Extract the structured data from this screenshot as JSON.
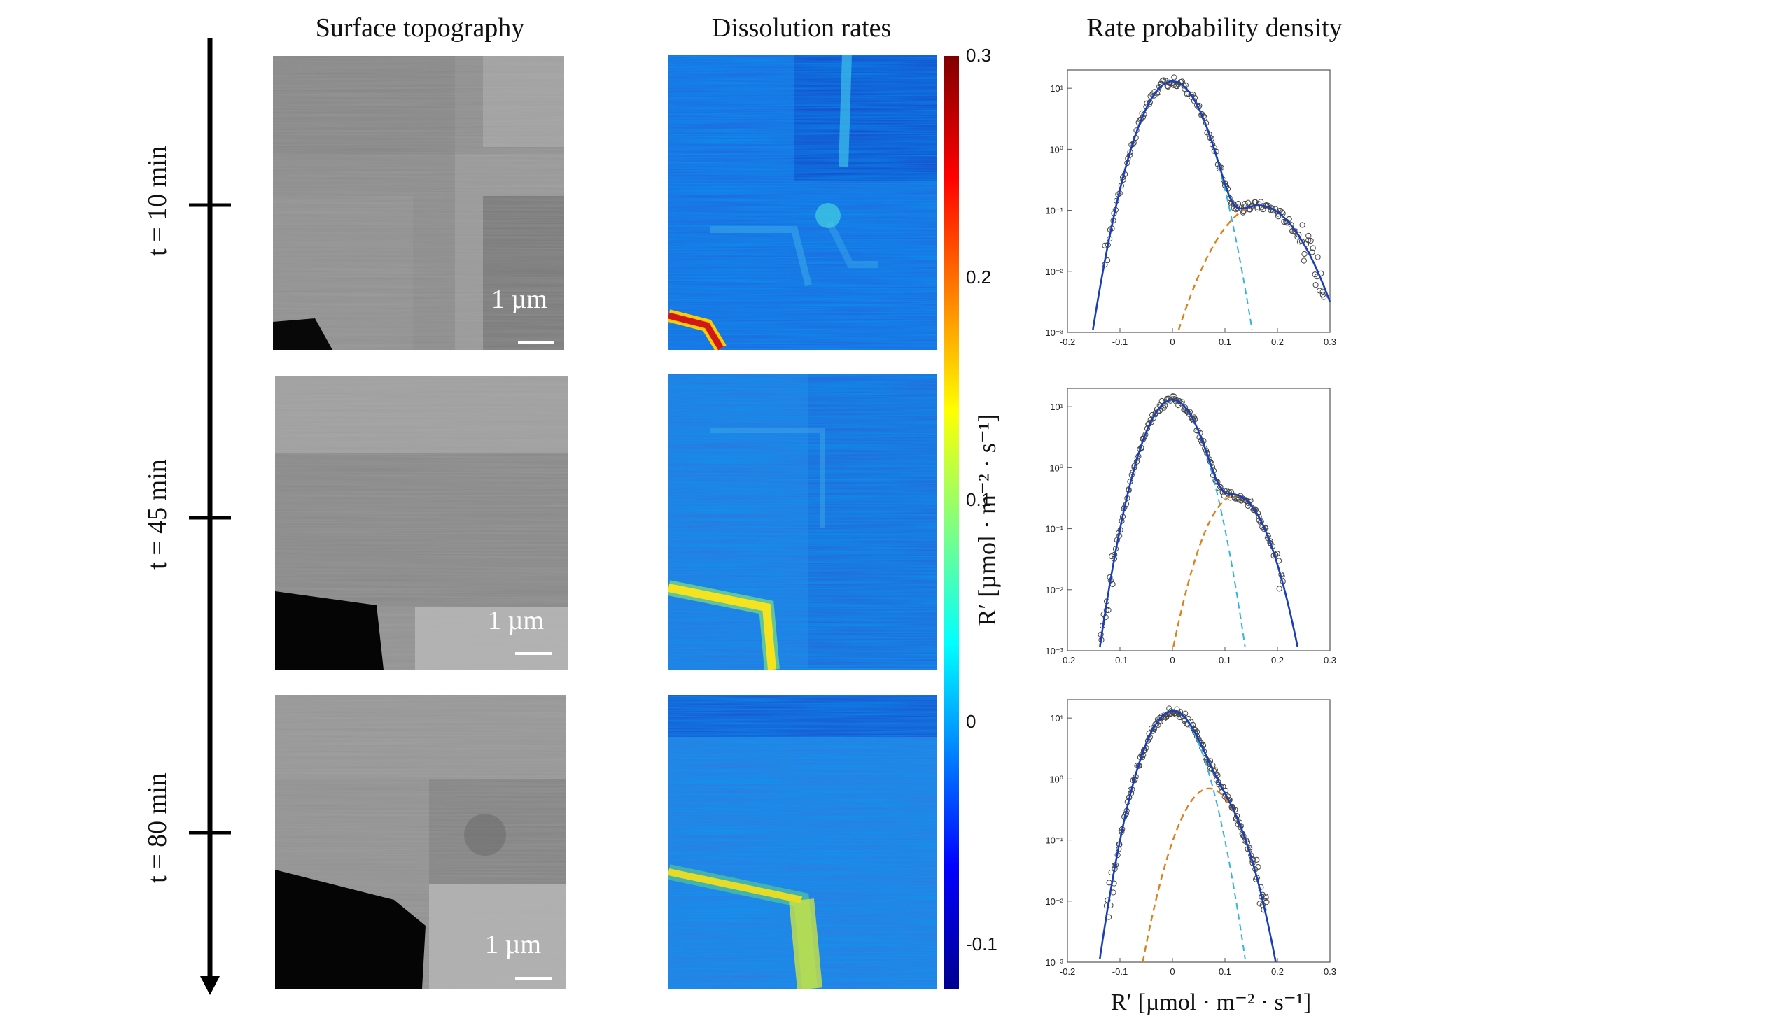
{
  "titles": {
    "topography": "Surface topography",
    "rates": "Dissolution rates",
    "density": "Rate probability density"
  },
  "timeline": [
    "t = 10 min",
    "t = 45 min",
    "t = 80 min"
  ],
  "scale_bar_label": "1 µm",
  "colorbar": {
    "ticks": [
      "0.3",
      "0.2",
      "0.1",
      "0",
      "-0.1"
    ],
    "tick_values": [
      0.3,
      0.2,
      0.1,
      0,
      -0.1
    ],
    "range": [
      -0.12,
      0.3
    ],
    "label": "R′ [µmol · m⁻² · s⁻¹]",
    "colors": [
      "#00008f",
      "#0000ff",
      "#00ffff",
      "#ffff00",
      "#ff0000",
      "#800000"
    ]
  },
  "density_xlabel": "R′ [µmol · m⁻² · s⁻¹]",
  "chart_data": [
    {
      "type": "scatter",
      "title": "t = 10 min",
      "xlabel": "",
      "ylabel": "",
      "xlim": [
        -0.2,
        0.3
      ],
      "ylim_log10": [
        -3,
        1.3
      ],
      "xticks": [
        "-0.2",
        "-0.1",
        "0",
        "0.1",
        "0.2",
        "0.3"
      ],
      "yticks": [
        "10⁻³",
        "10⁻²",
        "10⁻¹",
        "10⁰",
        "10¹"
      ],
      "components": [
        {
          "name": "fit",
          "color": "#1a3fb5",
          "style": "solid",
          "amp": 13,
          "mu": 0,
          "sigma": 0.035
        },
        {
          "name": "gaussian-1",
          "color": "#38b3d9",
          "style": "dashed",
          "amp": 13,
          "mu": 0,
          "sigma": 0.035
        },
        {
          "name": "gaussian-2",
          "color": "#d9821e",
          "style": "dashed",
          "amp": 0.12,
          "mu": 0.165,
          "sigma": 0.05
        }
      ],
      "points_range": [
        -0.13,
        0.29
      ]
    },
    {
      "type": "scatter",
      "title": "t = 45 min",
      "xlabel": "",
      "ylabel": "",
      "xlim": [
        -0.2,
        0.3
      ],
      "ylim_log10": [
        -3,
        1.3
      ],
      "xticks": [
        "-0.2",
        "-0.1",
        "0",
        "0.1",
        "0.2",
        "0.3"
      ],
      "yticks": [
        "10⁻³",
        "10⁻²",
        "10⁻¹",
        "10⁰",
        "10¹"
      ],
      "components": [
        {
          "name": "fit",
          "color": "#1a3fb5",
          "style": "solid",
          "amp": 13,
          "mu": 0,
          "sigma": 0.032
        },
        {
          "name": "gaussian-1",
          "color": "#38b3d9",
          "style": "dashed",
          "amp": 13,
          "mu": 0,
          "sigma": 0.032
        },
        {
          "name": "gaussian-2",
          "color": "#d9821e",
          "style": "dashed",
          "amp": 0.35,
          "mu": 0.12,
          "sigma": 0.035
        }
      ],
      "points_range": [
        -0.145,
        0.21
      ]
    },
    {
      "type": "scatter",
      "title": "t = 80 min",
      "xlabel": "R′ [µmol · m⁻² · s⁻¹]",
      "ylabel": "",
      "xlim": [
        -0.2,
        0.3
      ],
      "ylim_log10": [
        -3,
        1.3
      ],
      "xticks": [
        "-0.2",
        "-0.1",
        "0",
        "0.1",
        "0.2",
        "0.3"
      ],
      "yticks": [
        "10⁻³",
        "10⁻²",
        "10⁻¹",
        "10⁰",
        "10¹"
      ],
      "components": [
        {
          "name": "fit",
          "color": "#1a3fb5",
          "style": "solid",
          "amp": 13,
          "mu": 0,
          "sigma": 0.032
        },
        {
          "name": "gaussian-1",
          "color": "#38b3d9",
          "style": "dashed",
          "amp": 13,
          "mu": 0,
          "sigma": 0.032
        },
        {
          "name": "gaussian-2",
          "color": "#d9821e",
          "style": "dashed",
          "amp": 0.7,
          "mu": 0.07,
          "sigma": 0.035
        }
      ],
      "points_range": [
        -0.125,
        0.18
      ]
    }
  ]
}
